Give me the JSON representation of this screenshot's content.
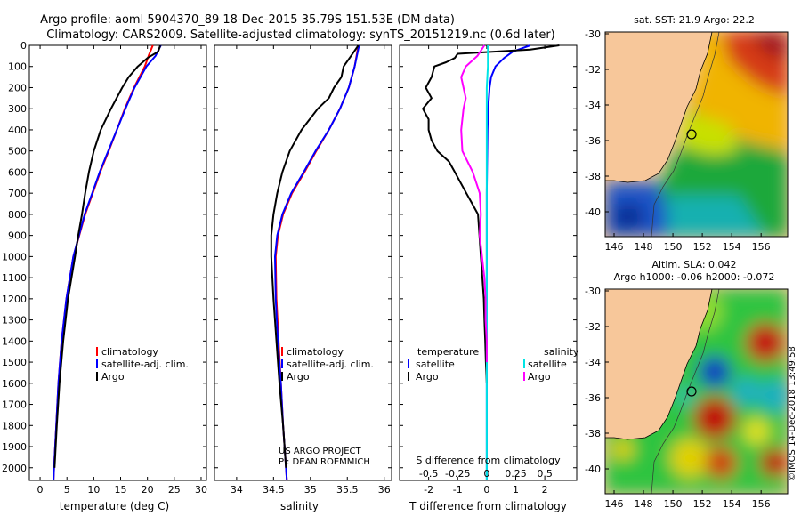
{
  "header": {
    "line1": "Argo profile: aoml 5904370_89 18-Dec-2015 35.79S 151.53E (DM data)",
    "line2": "Climatology: CARS2009. Satellite-adjusted climatology: synTS_20151219.nc (0.6d later)"
  },
  "colors": {
    "climatology": "#ff0000",
    "satellite": "#0000ff",
    "argo": "#000000",
    "salinity_satellite": "#00e5e5",
    "salinity_argo": "#ff00ff",
    "land": "#f7c79a"
  },
  "chart_data": [
    {
      "type": "line",
      "xlabel": "temperature (deg C)",
      "ylabel": "",
      "xlim": [
        -2,
        31
      ],
      "ylim": [
        2060,
        0
      ],
      "x_ticks": [
        0,
        5,
        10,
        15,
        20,
        25,
        30
      ],
      "y_ticks": [
        0,
        100,
        200,
        300,
        400,
        500,
        600,
        700,
        800,
        900,
        1000,
        1100,
        1200,
        1300,
        1400,
        1500,
        1600,
        1700,
        1800,
        1900,
        2000
      ],
      "legend": {
        "position": "lower-right",
        "entries": [
          "climatology",
          "satellite-adj. clim.",
          "Argo"
        ]
      },
      "series": [
        {
          "name": "climatology",
          "color": "#ff0000",
          "depth": [
            0,
            50,
            100,
            200,
            300,
            400,
            500,
            600,
            700,
            800,
            1000,
            1200,
            1400,
            1600,
            1800,
            2000,
            2060
          ],
          "values": [
            21.0,
            20.2,
            19.5,
            17.5,
            15.8,
            14.3,
            12.8,
            11.2,
            9.8,
            8.4,
            6.2,
            4.9,
            4.0,
            3.4,
            3.0,
            2.6,
            2.5
          ]
        },
        {
          "name": "satellite-adj. clim.",
          "color": "#0000ff",
          "depth": [
            0,
            50,
            100,
            200,
            300,
            400,
            500,
            600,
            700,
            800,
            1000,
            1200,
            1400,
            1600,
            1800,
            2000,
            2060
          ],
          "values": [
            22.5,
            21.5,
            19.8,
            17.6,
            15.9,
            14.3,
            12.7,
            11.1,
            9.7,
            8.3,
            6.2,
            4.9,
            4.0,
            3.4,
            3.0,
            2.6,
            2.5
          ]
        },
        {
          "name": "Argo",
          "color": "#000000",
          "depth": [
            0,
            30,
            60,
            100,
            150,
            200,
            300,
            400,
            500,
            600,
            700,
            800,
            900,
            1000,
            1200,
            1400,
            1600,
            1800,
            2000
          ],
          "values": [
            22.4,
            22.0,
            20.0,
            18.2,
            16.5,
            15.3,
            13.2,
            11.3,
            10.0,
            9.1,
            8.4,
            7.8,
            7.1,
            6.5,
            5.2,
            4.3,
            3.6,
            3.1,
            2.7
          ]
        }
      ]
    },
    {
      "type": "line",
      "xlabel": "salinity",
      "ylabel": "",
      "xlim": [
        33.7,
        36.1
      ],
      "ylim": [
        2060,
        0
      ],
      "x_ticks": [
        34,
        34.5,
        35,
        35.5,
        36
      ],
      "legend": {
        "position": "lower-right",
        "entries": [
          "climatology",
          "satellite-adj. clim.",
          "Argo"
        ]
      },
      "annotations": [
        "US ARGO PROJECT",
        "PI: DEAN ROEMMICH"
      ],
      "series": [
        {
          "name": "climatology",
          "color": "#ff0000",
          "depth": [
            0,
            100,
            200,
            300,
            400,
            500,
            600,
            700,
            800,
            900,
            1000,
            1200,
            1400,
            1600,
            1800,
            2000,
            2060
          ],
          "values": [
            35.65,
            35.6,
            35.52,
            35.4,
            35.25,
            35.08,
            34.92,
            34.75,
            34.63,
            34.56,
            34.53,
            34.54,
            34.57,
            34.6,
            34.63,
            34.67,
            34.68
          ]
        },
        {
          "name": "satellite-adj. clim.",
          "color": "#0000ff",
          "depth": [
            0,
            100,
            200,
            300,
            400,
            500,
            600,
            700,
            800,
            900,
            1000,
            1200,
            1400,
            1600,
            1800,
            2000,
            2060
          ],
          "values": [
            35.66,
            35.6,
            35.52,
            35.4,
            35.25,
            35.07,
            34.91,
            34.74,
            34.62,
            34.55,
            34.52,
            34.53,
            34.56,
            34.6,
            34.63,
            34.67,
            34.68
          ]
        },
        {
          "name": "Argo",
          "color": "#000000",
          "depth": [
            0,
            50,
            100,
            150,
            200,
            250,
            300,
            400,
            500,
            600,
            700,
            800,
            900,
            1000,
            1200,
            1400,
            1600,
            1800,
            2000
          ],
          "values": [
            35.65,
            35.55,
            35.45,
            35.42,
            35.32,
            35.25,
            35.1,
            34.88,
            34.72,
            34.62,
            34.55,
            34.5,
            34.47,
            34.47,
            34.5,
            34.54,
            34.58,
            34.63,
            34.67
          ]
        }
      ]
    },
    {
      "type": "line",
      "xlabel": "T difference from climatology",
      "title": "S difference from climatology",
      "xlim": [
        -3,
        3.1
      ],
      "ylim": [
        2060,
        0
      ],
      "x_ticks": [
        -2,
        -1,
        0,
        1,
        2
      ],
      "x_tick_labels": [
        "-2",
        "-1",
        "0",
        "1",
        "2"
      ],
      "top_ticks": [
        -0.5,
        -0.25,
        0,
        0.25,
        0.5
      ],
      "top_tick_labels": [
        "-0.5",
        "-0.25",
        "0",
        "0.25",
        "0.5"
      ],
      "legend": {
        "position": "lower-right",
        "groups": [
          {
            "title": "temperature",
            "entries": [
              "satellite",
              "Argo"
            ]
          },
          {
            "title": "salinity",
            "entries": [
              "satellite",
              "Argo"
            ]
          }
        ]
      },
      "series": [
        {
          "name": "temperature satellite",
          "color": "#0000ff",
          "depth": [
            0,
            30,
            60,
            100,
            150,
            200,
            300,
            400,
            500,
            600,
            700,
            800,
            1000,
            1200,
            1400,
            1600,
            1800,
            2000,
            2060
          ],
          "values": [
            1.5,
            0.9,
            0.6,
            0.3,
            0.15,
            0.1,
            0.05,
            0.03,
            0.02,
            0.01,
            0.0,
            0.0,
            0.0,
            0.0,
            0.0,
            0.0,
            0.0,
            0.0,
            0.0
          ]
        },
        {
          "name": "temperature Argo",
          "color": "#000000",
          "depth": [
            0,
            20,
            40,
            60,
            80,
            100,
            150,
            200,
            250,
            300,
            350,
            400,
            450,
            500,
            550,
            600,
            650,
            700,
            750,
            800,
            900,
            1000,
            1100,
            1200,
            1300,
            1400,
            1500,
            1600
          ],
          "values": [
            2.5,
            1.5,
            -1.0,
            -1.1,
            -1.4,
            -1.8,
            -1.9,
            -2.1,
            -1.9,
            -2.2,
            -2.0,
            -2.0,
            -1.9,
            -1.7,
            -1.3,
            -1.1,
            -0.9,
            -0.7,
            -0.5,
            -0.3,
            -0.25,
            -0.2,
            -0.15,
            -0.1,
            -0.08,
            -0.05,
            -0.03,
            0.0
          ]
        },
        {
          "name": "salinity satellite",
          "color": "#00e5e5",
          "depth": [
            0,
            100,
            200,
            400,
            600,
            800,
            1000,
            1500,
            2000,
            2060
          ],
          "values": [
            0.01,
            0.01,
            0.0,
            0.0,
            0.0,
            0.0,
            0.0,
            0.0,
            0.0,
            0.0
          ]
        },
        {
          "name": "salinity Argo",
          "color": "#ff00ff",
          "depth": [
            0,
            50,
            100,
            150,
            200,
            250,
            300,
            400,
            500,
            600,
            700,
            800,
            900,
            1000,
            1100,
            1200,
            1300,
            1400,
            1500
          ],
          "values": [
            -0.02,
            -0.08,
            -0.18,
            -0.22,
            -0.2,
            -0.18,
            -0.2,
            -0.22,
            -0.21,
            -0.12,
            -0.06,
            -0.05,
            -0.06,
            -0.04,
            -0.02,
            -0.01,
            -0.01,
            0.0,
            0.0
          ]
        }
      ]
    }
  ],
  "maps": {
    "top": {
      "title": "sat. SST: 21.9 Argo: 22.2",
      "lat_ticks": [
        "-30",
        "-32",
        "-34",
        "-36",
        "-38",
        "-40"
      ],
      "lon_ticks": [
        "146",
        "148",
        "150",
        "152",
        "154",
        "156"
      ]
    },
    "bottom": {
      "title_line1": "Altim. SLA: 0.042",
      "title_line2": "Argo h1000: -0.06 h2000: -0.072",
      "lat_ticks": [
        "-30",
        "-32",
        "-34",
        "-36",
        "-38",
        "-40"
      ],
      "lon_ticks": [
        "146",
        "148",
        "150",
        "152",
        "154",
        "156"
      ]
    },
    "profile_location": {
      "lon": 151.53,
      "lat": -35.79
    }
  },
  "credit": "©IMOS 14-Dec-2018 13:49:58"
}
